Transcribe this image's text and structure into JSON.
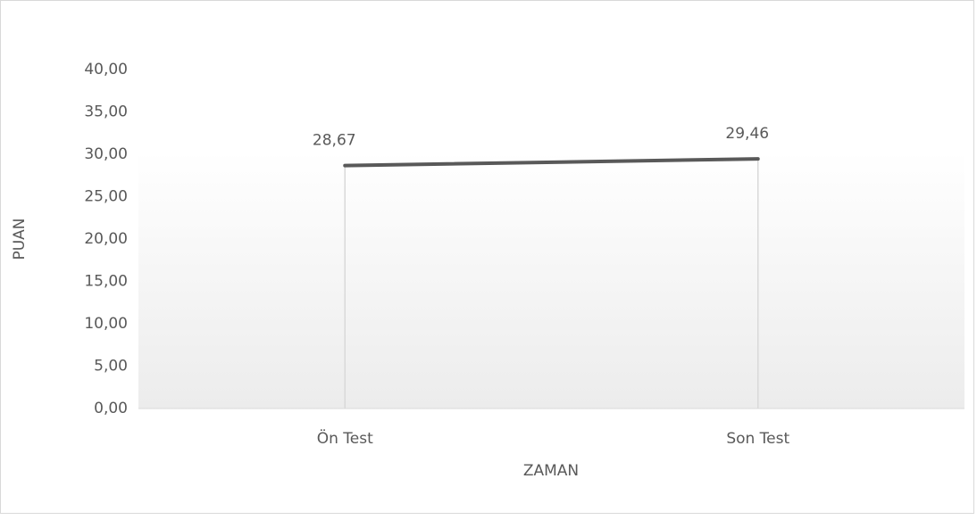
{
  "chart_data": {
    "type": "line",
    "x_label": "ZAMAN",
    "y_label": "PUAN",
    "categories": [
      "Ön Test",
      "Son Test"
    ],
    "series": [
      {
        "name": "PUAN",
        "color": "#595959",
        "values": [
          28.67,
          29.46
        ],
        "value_labels": [
          "28,67",
          "29,46"
        ]
      }
    ],
    "ylim": [
      0,
      40
    ],
    "yticks": [
      {
        "value": 0,
        "label": "0,00"
      },
      {
        "value": 5,
        "label": "5,00"
      },
      {
        "value": 10,
        "label": "10,00"
      },
      {
        "value": 15,
        "label": "15,00"
      },
      {
        "value": 20,
        "label": "20,00"
      },
      {
        "value": 25,
        "label": "25,00"
      },
      {
        "value": 30,
        "label": "30,00"
      },
      {
        "value": 35,
        "label": "35,00"
      },
      {
        "value": 40,
        "label": "40,00"
      }
    ],
    "grid": false,
    "drop_lines": true
  }
}
